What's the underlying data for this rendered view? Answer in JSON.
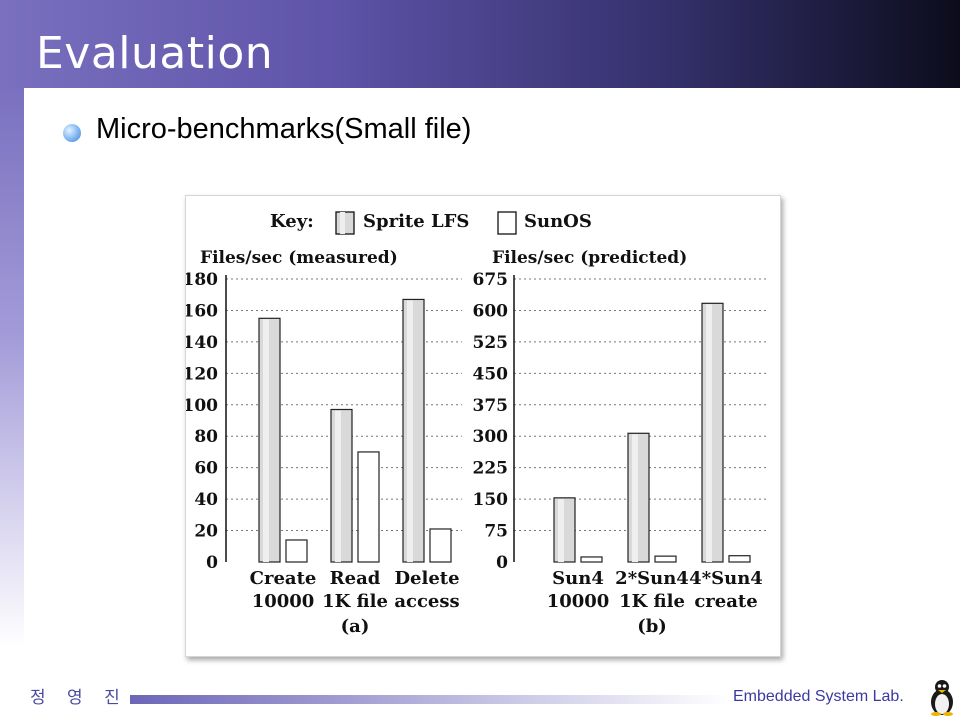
{
  "slide": {
    "title": "Evaluation",
    "bullet": "Micro-benchmarks(Small file)",
    "footer_name": "정 영 진",
    "footer_lab": "Embedded System Lab."
  },
  "chart_data": [
    {
      "type": "bar",
      "key_label": "Key:",
      "ylabel": "Files/sec (measured)",
      "categories": [
        "Create",
        "Read",
        "Delete"
      ],
      "category_lines": [
        "10000",
        "1K file",
        "access"
      ],
      "caption": "(a)",
      "yticks": [
        0,
        20,
        40,
        60,
        80,
        100,
        120,
        140,
        160,
        180
      ],
      "ylim": [
        0,
        180
      ],
      "grid": true,
      "series": [
        {
          "name": "Sprite LFS",
          "values": [
            155,
            97,
            167
          ],
          "color": "#d9d9d9"
        },
        {
          "name": "SunOS",
          "values": [
            14,
            70,
            21
          ],
          "color": "#ffffff"
        }
      ]
    },
    {
      "type": "bar",
      "ylabel": "Files/sec (predicted)",
      "categories": [
        "Sun4",
        "2*Sun4",
        "4*Sun4"
      ],
      "category_lines": [
        "10000",
        "1K file",
        "create"
      ],
      "caption": "(b)",
      "yticks": [
        0,
        75,
        150,
        225,
        300,
        375,
        450,
        525,
        600,
        675
      ],
      "ylim": [
        0,
        675
      ],
      "grid": true,
      "series": [
        {
          "name": "Sprite LFS",
          "values": [
            153,
            307,
            617
          ],
          "color": "#d9d9d9"
        },
        {
          "name": "SunOS",
          "values": [
            12,
            14,
            15
          ],
          "color": "#ffffff"
        }
      ]
    }
  ]
}
